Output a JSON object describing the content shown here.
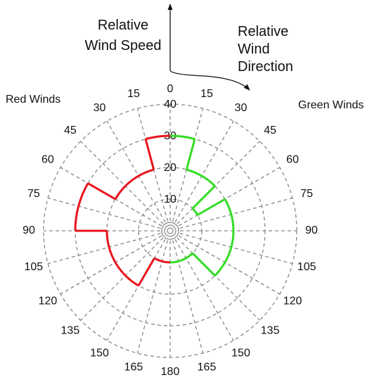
{
  "chart_data": {
    "type": "polar-step",
    "r_label": "Relative Wind Speed",
    "theta_label": "Relative Wind Direction",
    "rlim": [
      0,
      40
    ],
    "rticks": [
      10,
      20,
      30,
      40
    ],
    "theta_ticks": [
      0,
      15,
      30,
      45,
      60,
      75,
      90,
      105,
      120,
      135,
      150,
      165,
      180
    ],
    "grid": true,
    "series": [
      {
        "name": "Green Winds",
        "color": "#33dd22",
        "values": [
          30,
          20,
          20,
          10,
          20,
          20,
          20,
          20,
          20,
          10,
          10,
          10
        ]
      },
      {
        "name": "Red Winds",
        "color": "#e8141c",
        "values": [
          30,
          20,
          20,
          20,
          30,
          30,
          20,
          20,
          20,
          20,
          10,
          10
        ]
      }
    ]
  }
}
